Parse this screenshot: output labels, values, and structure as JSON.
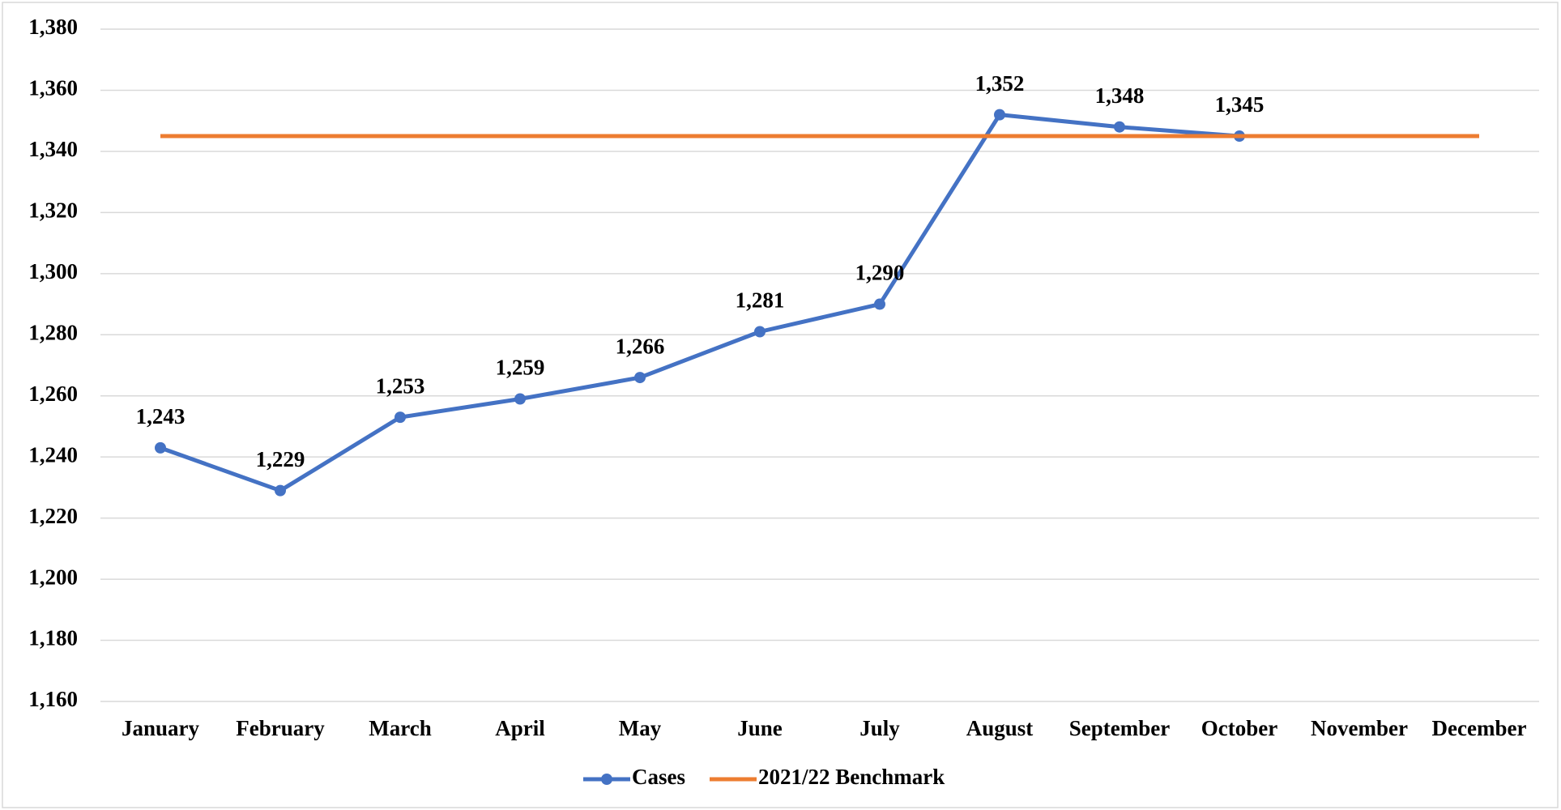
{
  "chart_data": {
    "type": "line",
    "categories": [
      "January",
      "February",
      "March",
      "April",
      "May",
      "June",
      "July",
      "August",
      "September",
      "October",
      "November",
      "December"
    ],
    "series": [
      {
        "name": "Cases",
        "color": "#4472c4",
        "marker": true,
        "values": [
          1243,
          1229,
          1253,
          1259,
          1266,
          1281,
          1290,
          1352,
          1348,
          1345,
          null,
          null
        ],
        "value_labels": [
          "1,243",
          "1,229",
          "1,253",
          "1,259",
          "1,266",
          "1,281",
          "1,290",
          "1,352",
          "1,348",
          "1,345",
          null,
          null
        ]
      },
      {
        "name": "2021/22 Benchmark",
        "color": "#ed7d31",
        "marker": false,
        "values": [
          1345,
          1345,
          1345,
          1345,
          1345,
          1345,
          1345,
          1345,
          1345,
          1345,
          1345,
          1345
        ]
      }
    ],
    "ylim": [
      1160,
      1380
    ],
    "yticks": [
      {
        "value": 1160,
        "label": "1,160"
      },
      {
        "value": 1180,
        "label": "1,180"
      },
      {
        "value": 1200,
        "label": "1,200"
      },
      {
        "value": 1220,
        "label": "1,220"
      },
      {
        "value": 1240,
        "label": "1,240"
      },
      {
        "value": 1260,
        "label": "1,260"
      },
      {
        "value": 1280,
        "label": "1,280"
      },
      {
        "value": 1300,
        "label": "1,300"
      },
      {
        "value": 1320,
        "label": "1,320"
      },
      {
        "value": 1340,
        "label": "1,340"
      },
      {
        "value": 1360,
        "label": "1,360"
      },
      {
        "value": 1380,
        "label": "1,380"
      }
    ],
    "grid": true,
    "legend": "bottom"
  }
}
